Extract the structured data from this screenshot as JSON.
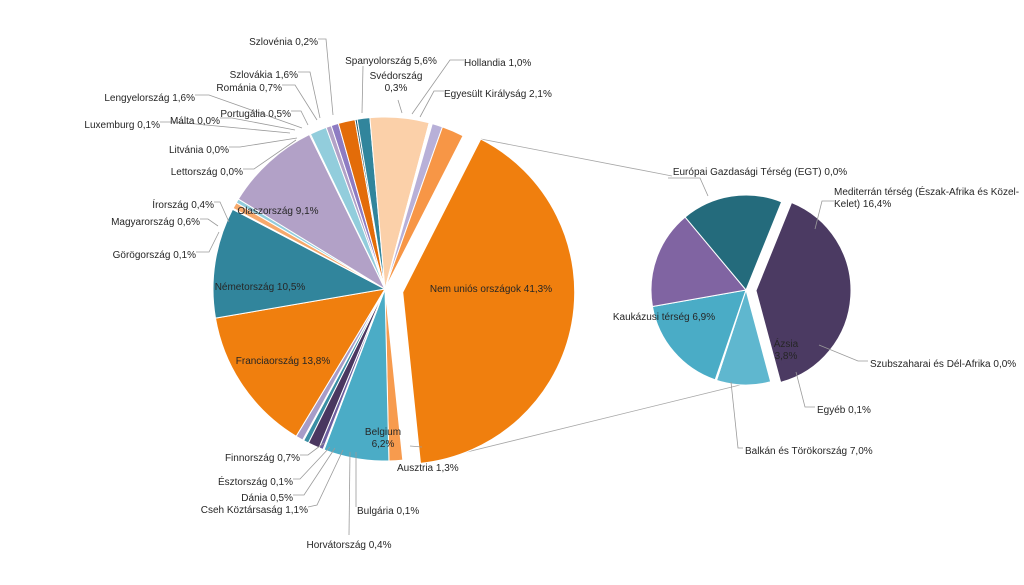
{
  "chart_data": {
    "type": "pie",
    "main": {
      "slices": [
        {
          "label": "Nem uniós országok 41,3%",
          "value": 41.3,
          "color": "#f07f0e",
          "exploded": true
        },
        {
          "label": "Ausztria 1,3%",
          "value": 1.3,
          "color": "#f79b4e"
        },
        {
          "label": "Belgium\n6,2%",
          "value": 6.2,
          "color": "#4bacc6"
        },
        {
          "label": "Bulgária 0,1%",
          "value": 0.1,
          "color": "#2c6e7f"
        },
        {
          "label": "Horvátország 0,4%",
          "value": 0.4,
          "color": "#6e5fa0"
        },
        {
          "label": "Cseh Köztársaság 1,1%",
          "value": 1.1,
          "color": "#4a3760"
        },
        {
          "label": "Dánia 0,5%",
          "value": 0.5,
          "color": "#3a8fa5"
        },
        {
          "label": "Észtország 0,1%",
          "value": 0.1,
          "color": "#f7c5a0"
        },
        {
          "label": "Finnország 0,7%",
          "value": 0.7,
          "color": "#a79cc8"
        },
        {
          "label": "Franciaország 13,8%",
          "value": 13.8,
          "color": "#f07f0e"
        },
        {
          "label": "Németország 10,5%",
          "value": 10.5,
          "color": "#31859c"
        },
        {
          "label": "Görögország 0,1%",
          "value": 0.1,
          "color": "#fbd5b5"
        },
        {
          "label": "Magyarország 0,6%",
          "value": 0.6,
          "color": "#f6a96c"
        },
        {
          "label": "Írország 0,4%",
          "value": 0.4,
          "color": "#92cddc"
        },
        {
          "label": "Olaszország 9,1%",
          "value": 9.1,
          "color": "#b2a1c7"
        },
        {
          "label": "Lettország 0,0%",
          "value": 0.0,
          "color": "#215968"
        },
        {
          "label": "Litvánia 0,0%",
          "value": 0.0,
          "color": "#e46c0a"
        },
        {
          "label": "Luxemburg 0,1%",
          "value": 0.1,
          "color": "#403151"
        },
        {
          "label": "Málta 0,0%",
          "value": 0.0,
          "color": "#8064a2"
        },
        {
          "label": "Lengyelország 1,6%",
          "value": 1.6,
          "color": "#92cddc"
        },
        {
          "label": "Portugália 0,5%",
          "value": 0.5,
          "color": "#b2a1c7"
        },
        {
          "label": "Románia 0,7%",
          "value": 0.7,
          "color": "#8e7cc3"
        },
        {
          "label": "Szlovákia 1,6%",
          "value": 1.6,
          "color": "#e36c09"
        },
        {
          "label": "Szlovénia 0,2%",
          "value": 0.2,
          "color": "#205867"
        },
        {
          "label": "",
          "value": 1.2,
          "color": "#31859c"
        },
        {
          "label": "Spanyolország 5,6%",
          "value": 5.6,
          "color": "#fbd0a9"
        },
        {
          "label": "Svédország\n0,3%",
          "value": 0.3,
          "color": "#ffffff"
        },
        {
          "label": "Hollandia 1,0%",
          "value": 1.0,
          "color": "#b8b0d8"
        },
        {
          "label": "Egyesült Királyság 2,1%",
          "value": 2.1,
          "color": "#f79646"
        }
      ]
    },
    "secondary": {
      "slices": [
        {
          "label": "Mediterrán térség (Észak-Afrika és Közel-\nKelet) 16,4%",
          "value": 16.4,
          "color": "#4b3a62",
          "exploded": true
        },
        {
          "label": "Szubszaharai és Dél-Afrika 0,0%",
          "value": 0.0,
          "color": "#ffffff"
        },
        {
          "label": "Ázsia\n3,8%",
          "value": 3.8,
          "color": "#5fb7cf"
        },
        {
          "label": "Egyéb 0,1%",
          "value": 0.1,
          "color": "#ffffff"
        },
        {
          "label": "Balkán és Törökország 7,0%",
          "value": 7.0,
          "color": "#4aacc6"
        },
        {
          "label": "Kaukázusi térség 6,9%",
          "value": 6.9,
          "color": "#8064a2"
        },
        {
          "label": "Európai Gazdasági Térség (EGT) 0,0%",
          "value": 0.0,
          "color": "#ffffff"
        },
        {
          "label": "",
          "value": 7.1,
          "color": "#246b7c"
        }
      ]
    }
  }
}
